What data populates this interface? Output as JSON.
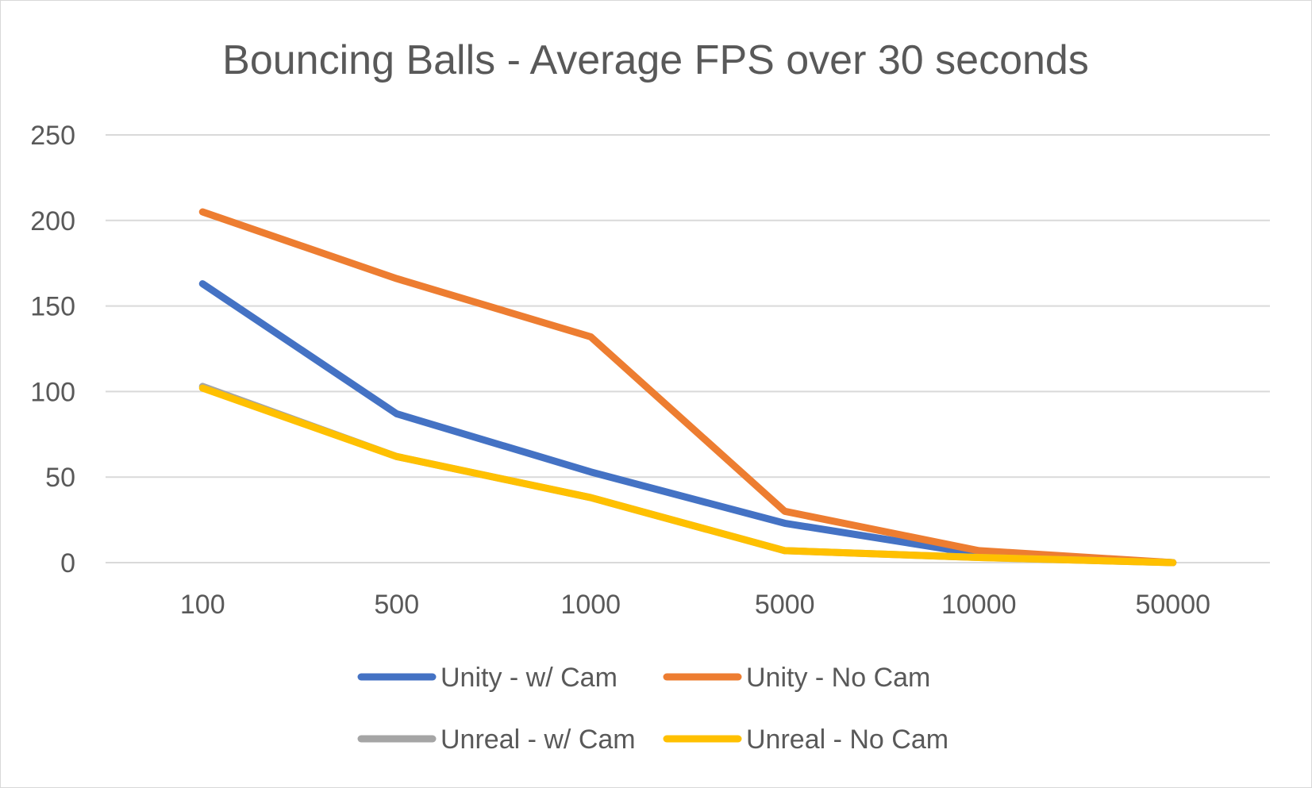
{
  "chart_data": {
    "type": "line",
    "title": "Bouncing Balls - Average FPS over 30 seconds",
    "xlabel": "",
    "ylabel": "",
    "categories": [
      "100",
      "500",
      "1000",
      "5000",
      "10000",
      "50000"
    ],
    "ylim": [
      0,
      250
    ],
    "yticks": [
      "0",
      "50",
      "100",
      "150",
      "200",
      "250"
    ],
    "grid": true,
    "legend_position": "bottom",
    "series": [
      {
        "name": "Unity - w/ Cam",
        "color": "#4472c4",
        "values": [
          163,
          87,
          53,
          23,
          5,
          0
        ]
      },
      {
        "name": "Unity - No Cam",
        "color": "#ed7d31",
        "values": [
          205,
          166,
          132,
          30,
          7,
          0
        ]
      },
      {
        "name": "Unreal - w/ Cam",
        "color": "#a5a5a5",
        "values": [
          103,
          62,
          38,
          7,
          3,
          0
        ]
      },
      {
        "name": "Unreal - No Cam",
        "color": "#ffc000",
        "values": [
          102,
          62,
          38,
          7,
          3,
          0
        ]
      }
    ]
  }
}
